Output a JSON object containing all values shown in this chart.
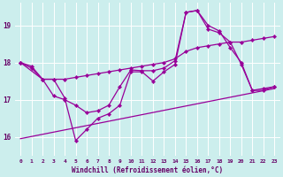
{
  "xlabel": "Windchill (Refroidissement éolien,°C)",
  "background_color": "#cceeed",
  "line_color": "#990099",
  "grid_color": "#aadddd",
  "xlim": [
    -0.5,
    23.5
  ],
  "ylim": [
    15.5,
    19.6
  ],
  "yticks": [
    16,
    17,
    18,
    19
  ],
  "xticks": [
    0,
    1,
    2,
    3,
    4,
    5,
    6,
    7,
    8,
    9,
    10,
    11,
    12,
    13,
    14,
    15,
    16,
    17,
    18,
    19,
    20,
    21,
    22,
    23
  ],
  "line1_x": [
    0,
    1,
    2,
    3,
    4,
    5,
    6,
    7,
    8,
    9,
    10,
    11,
    12,
    13,
    14,
    15,
    16,
    17,
    18,
    19,
    20,
    21,
    22,
    23
  ],
  "line1_y": [
    18.0,
    17.85,
    17.55,
    17.55,
    17.55,
    17.6,
    17.65,
    17.7,
    17.75,
    17.8,
    17.85,
    17.9,
    17.95,
    18.0,
    18.1,
    18.3,
    18.4,
    18.45,
    18.5,
    18.55,
    18.55,
    18.6,
    18.65,
    18.7
  ],
  "line2_x": [
    0,
    23
  ],
  "line2_y": [
    15.95,
    17.3
  ],
  "line3_x": [
    0,
    1,
    2,
    3,
    4,
    5,
    6,
    7,
    8,
    9,
    10,
    11,
    12,
    13,
    14,
    15,
    16,
    17,
    18,
    19,
    20,
    21,
    22,
    23
  ],
  "line3_y": [
    18.0,
    17.9,
    17.55,
    17.1,
    17.0,
    16.85,
    16.65,
    16.7,
    16.85,
    17.35,
    17.8,
    17.78,
    17.78,
    17.85,
    18.05,
    19.35,
    19.4,
    19.0,
    18.85,
    18.4,
    18.0,
    17.25,
    17.25,
    17.35
  ],
  "line4_x": [
    0,
    2,
    3,
    4,
    5,
    6,
    7,
    8,
    9,
    10,
    11,
    12,
    13,
    14,
    15,
    16,
    17,
    18,
    19,
    20,
    21,
    22,
    23
  ],
  "line4_y": [
    18.0,
    17.55,
    17.55,
    17.05,
    15.9,
    16.2,
    16.5,
    16.62,
    16.85,
    17.75,
    17.75,
    17.5,
    17.75,
    17.95,
    19.35,
    19.4,
    18.9,
    18.8,
    18.55,
    17.95,
    17.25,
    17.3,
    17.35
  ]
}
